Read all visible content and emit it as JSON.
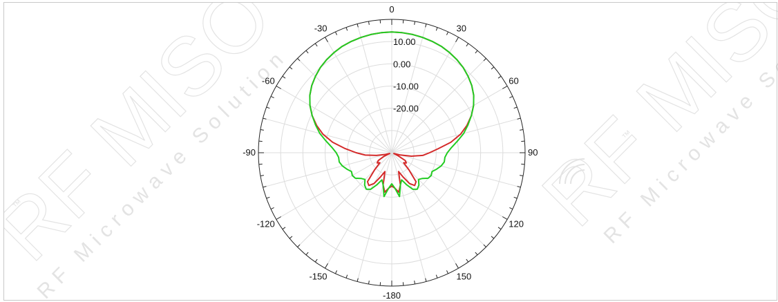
{
  "chart_data": {
    "type": "polar",
    "angle_unit": "degrees",
    "angle_direction": "clockwise",
    "zero_location": "top",
    "angle_ticks": [
      0,
      30,
      60,
      90,
      120,
      150,
      -180,
      -150,
      -120,
      -90,
      -60,
      -30
    ],
    "angle_tick_labels": [
      "0",
      "30",
      "60",
      "90",
      "120",
      "150",
      "-180",
      "-150",
      "-120",
      "-90",
      "-60",
      "-30"
    ],
    "r_ticks": [
      10,
      0,
      -10,
      -20
    ],
    "r_tick_labels": [
      "10.00",
      "0.00",
      "-10.00",
      "-20.00"
    ],
    "r_range": [
      -40,
      20
    ],
    "grid": true,
    "series": [
      {
        "color": "#d42a2a",
        "points": [
          [
            -180,
            -25
          ],
          [
            -175,
            -24
          ],
          [
            -170,
            -22
          ],
          [
            -165,
            -25
          ],
          [
            -160,
            -31
          ],
          [
            -155,
            -28
          ],
          [
            -150,
            -24
          ],
          [
            -145,
            -22
          ],
          [
            -140,
            -23
          ],
          [
            -135,
            -29
          ],
          [
            -130,
            -33
          ],
          [
            -125,
            -32
          ],
          [
            -120,
            -33
          ],
          [
            -115,
            -36
          ],
          [
            -110,
            -39
          ],
          [
            -105,
            -37
          ],
          [
            -100,
            -33
          ],
          [
            -95,
            -28
          ],
          [
            -90,
            -24
          ],
          [
            -85,
            -19
          ],
          [
            -80,
            -13
          ],
          [
            -75,
            -8
          ],
          [
            -70,
            -4
          ],
          [
            -65,
            -0.5
          ],
          [
            -60,
            2.5
          ],
          [
            -55,
            5
          ],
          [
            -50,
            7
          ],
          [
            -45,
            8.6
          ],
          [
            -40,
            10
          ],
          [
            -35,
            11.1
          ],
          [
            -30,
            12
          ],
          [
            -25,
            12.8
          ],
          [
            -20,
            13.3
          ],
          [
            -15,
            13.7
          ],
          [
            -10,
            14
          ],
          [
            -5,
            14.2
          ],
          [
            0,
            14.3
          ],
          [
            5,
            14.2
          ],
          [
            10,
            14
          ],
          [
            15,
            13.7
          ],
          [
            20,
            13.3
          ],
          [
            25,
            12.8
          ],
          [
            30,
            12
          ],
          [
            35,
            11.1
          ],
          [
            40,
            10
          ],
          [
            45,
            8.6
          ],
          [
            50,
            7
          ],
          [
            55,
            5
          ],
          [
            60,
            2.5
          ],
          [
            65,
            -0.5
          ],
          [
            70,
            -4
          ],
          [
            75,
            -8
          ],
          [
            80,
            -13
          ],
          [
            85,
            -19
          ],
          [
            90,
            -23
          ],
          [
            95,
            -26
          ],
          [
            100,
            -31
          ],
          [
            105,
            -36
          ],
          [
            110,
            -39
          ],
          [
            115,
            -37
          ],
          [
            120,
            -33
          ],
          [
            125,
            -32
          ],
          [
            130,
            -33
          ],
          [
            135,
            -29
          ],
          [
            140,
            -23
          ],
          [
            145,
            -22
          ],
          [
            150,
            -24
          ],
          [
            155,
            -28
          ],
          [
            160,
            -31
          ],
          [
            165,
            -25
          ],
          [
            170,
            -22
          ],
          [
            175,
            -24
          ],
          [
            180,
            -25
          ]
        ]
      },
      {
        "color": "#22cc22",
        "points": [
          [
            -180,
            -26
          ],
          [
            -175,
            -24
          ],
          [
            -170,
            -20
          ],
          [
            -165,
            -25
          ],
          [
            -160,
            -27
          ],
          [
            -155,
            -24
          ],
          [
            -150,
            -21
          ],
          [
            -145,
            -20
          ],
          [
            -140,
            -21
          ],
          [
            -135,
            -23
          ],
          [
            -130,
            -22
          ],
          [
            -125,
            -20
          ],
          [
            -120,
            -19.5
          ],
          [
            -115,
            -20
          ],
          [
            -110,
            -18.5
          ],
          [
            -105,
            -17
          ],
          [
            -100,
            -16
          ],
          [
            -95,
            -16
          ],
          [
            -90,
            -15
          ],
          [
            -85,
            -13
          ],
          [
            -80,
            -10
          ],
          [
            -75,
            -6.5
          ],
          [
            -70,
            -3.5
          ],
          [
            -65,
            -0.5
          ],
          [
            -60,
            2.5
          ],
          [
            -55,
            5
          ],
          [
            -50,
            7
          ],
          [
            -45,
            8.6
          ],
          [
            -40,
            10
          ],
          [
            -35,
            11.1
          ],
          [
            -30,
            12
          ],
          [
            -25,
            12.8
          ],
          [
            -20,
            13.3
          ],
          [
            -15,
            13.7
          ],
          [
            -10,
            14
          ],
          [
            -5,
            14.2
          ],
          [
            0,
            14.3
          ],
          [
            5,
            14.2
          ],
          [
            10,
            14
          ],
          [
            15,
            13.7
          ],
          [
            20,
            13.3
          ],
          [
            25,
            12.8
          ],
          [
            30,
            12
          ],
          [
            35,
            11.1
          ],
          [
            40,
            10
          ],
          [
            45,
            8.6
          ],
          [
            50,
            7
          ],
          [
            55,
            5
          ],
          [
            60,
            2.5
          ],
          [
            65,
            -0.5
          ],
          [
            70,
            -3.5
          ],
          [
            75,
            -6.5
          ],
          [
            80,
            -10
          ],
          [
            85,
            -13
          ],
          [
            90,
            -15
          ],
          [
            95,
            -16
          ],
          [
            100,
            -16
          ],
          [
            105,
            -17
          ],
          [
            110,
            -18.5
          ],
          [
            115,
            -20
          ],
          [
            120,
            -19.5
          ],
          [
            125,
            -20
          ],
          [
            130,
            -22
          ],
          [
            135,
            -23
          ],
          [
            140,
            -21
          ],
          [
            145,
            -20
          ],
          [
            150,
            -21
          ],
          [
            155,
            -24
          ],
          [
            160,
            -27
          ],
          [
            165,
            -25
          ],
          [
            170,
            -20
          ],
          [
            175,
            -24
          ],
          [
            180,
            -26
          ]
        ]
      }
    ]
  },
  "watermark": {
    "brand": "RF MISO",
    "tagline": "RF Microwave Solution",
    "trademark": "™"
  }
}
